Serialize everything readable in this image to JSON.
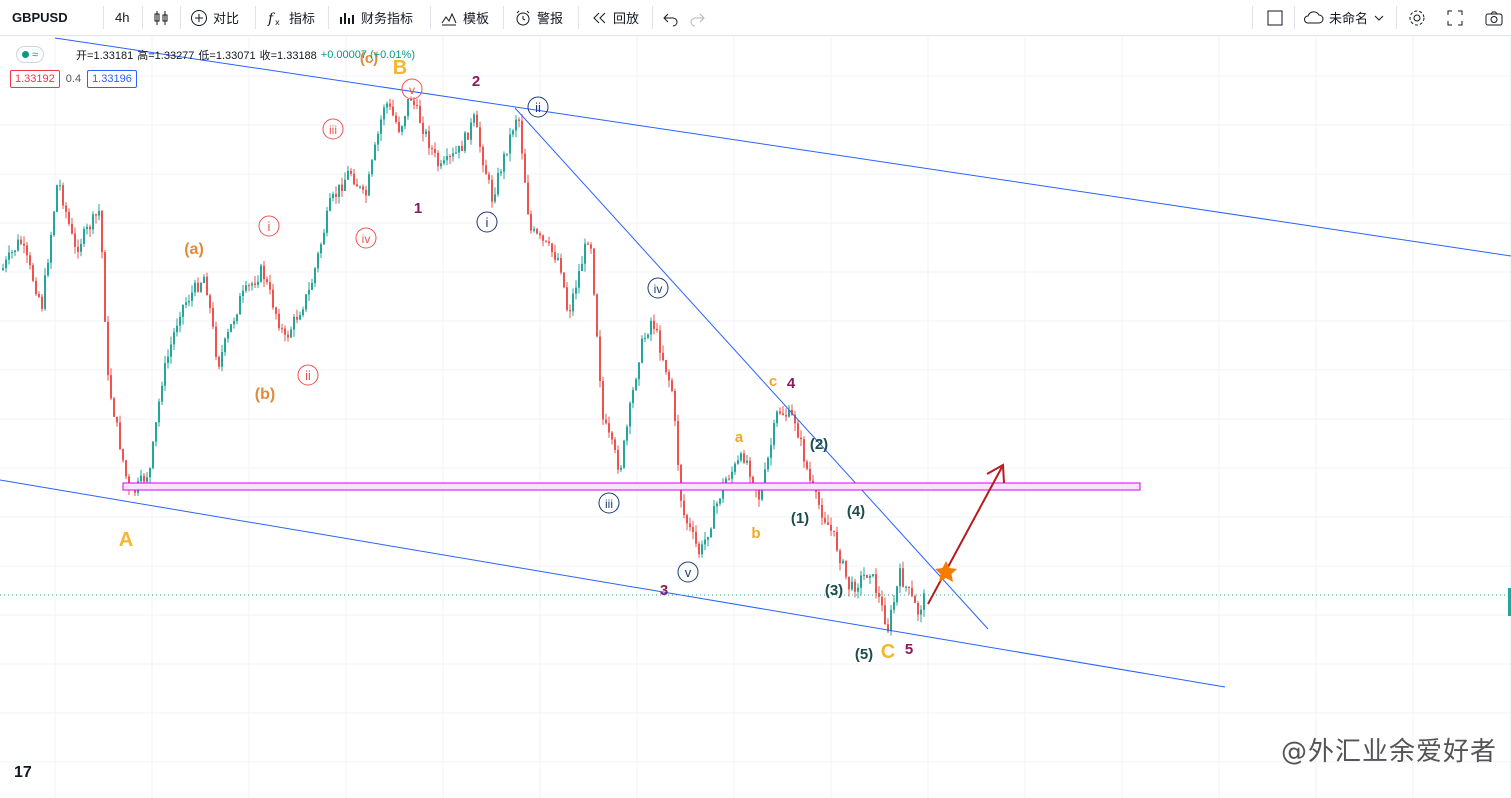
{
  "toolbar": {
    "symbol": "GBPUSD",
    "interval": "4h",
    "compare": "对比",
    "indicators": "指标",
    "financials": "财务指标",
    "templates": "模板",
    "alert": "警报",
    "replay": "回放",
    "layout_name": "未命名"
  },
  "legend": {
    "open": "开=1.33181",
    "high": "高=1.33277",
    "low": "低=1.33071",
    "close": "收=1.33188",
    "change": "+0.00007 (+0.01%)"
  },
  "prices": {
    "bid": "1.33192",
    "spread": "0.4",
    "ask": "1.33196"
  },
  "watermark": "@外汇业余爱好者",
  "tv_logo": "17",
  "annotations": {
    "A": "A",
    "B": "B",
    "C": "C",
    "pa": "(a)",
    "pb": "(b)",
    "pc": "(c)",
    "r_i": "i",
    "r_ii": "ii",
    "r_iii": "iii",
    "r_iv": "iv",
    "r_v": "v",
    "b_i": "i",
    "b_ii": "ii",
    "b_iii": "iii",
    "b_iv": "iv",
    "b_v": "v",
    "n1": "1",
    "n2": "2",
    "n3": "3",
    "n4": "4",
    "n5": "5",
    "sa": "a",
    "sb": "b",
    "sc": "c",
    "w1": "(1)",
    "w2": "(2)",
    "w3": "(3)",
    "w4": "(4)",
    "w5": "(5)"
  },
  "colors": {
    "up": "#26a69a",
    "down": "#ef5350",
    "channel": "#2962ff",
    "zone": "#d500f9",
    "arrow": "#b71c1c",
    "star": "#f57c00",
    "orange": "#e08a3c",
    "yellow": "#f5b731",
    "purple": "#8b1a5a",
    "navy": "#1e3a6e"
  }
}
